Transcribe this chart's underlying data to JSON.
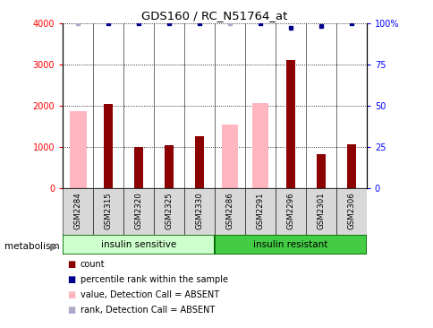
{
  "title": "GDS160 / RC_N51764_at",
  "samples": [
    "GSM2284",
    "GSM2315",
    "GSM2320",
    "GSM2325",
    "GSM2330",
    "GSM2286",
    "GSM2291",
    "GSM2296",
    "GSM2301",
    "GSM2306"
  ],
  "count_values": [
    0,
    2050,
    1000,
    1050,
    1260,
    0,
    0,
    3100,
    840,
    1060
  ],
  "pink_values": [
    1870,
    0,
    0,
    0,
    0,
    1540,
    2070,
    0,
    0,
    0
  ],
  "percentile_rank": [
    100,
    100,
    100,
    100,
    100,
    100,
    100,
    97,
    98,
    100
  ],
  "rank_absent": [
    1,
    0,
    0,
    0,
    0,
    1,
    0,
    0,
    0,
    0
  ],
  "ylim": [
    0,
    4000
  ],
  "y2lim": [
    0,
    100
  ],
  "yticks": [
    0,
    1000,
    2000,
    3000,
    4000
  ],
  "y2ticks": [
    0,
    25,
    50,
    75,
    100
  ],
  "group1_label": "insulin sensitive",
  "group2_label": "insulin resistant",
  "group1_count": 5,
  "group2_count": 5,
  "left_label": "metabolism",
  "bar_color_dark": "#8B0000",
  "bar_color_pink": "#FFB6C1",
  "dot_color_blue": "#00008B",
  "dot_color_lightblue": "#AAAACC",
  "group1_color": "#CCFFCC",
  "group2_color": "#44CC44",
  "sample_bg_color": "#D8D8D8",
  "plot_bg_color": "#FFFFFF",
  "legend_items": [
    {
      "color": "#8B0000",
      "label": "count"
    },
    {
      "color": "#00008B",
      "label": "percentile rank within the sample"
    },
    {
      "color": "#FFB6C1",
      "label": "value, Detection Call = ABSENT"
    },
    {
      "color": "#AAAACC",
      "label": "rank, Detection Call = ABSENT"
    }
  ]
}
